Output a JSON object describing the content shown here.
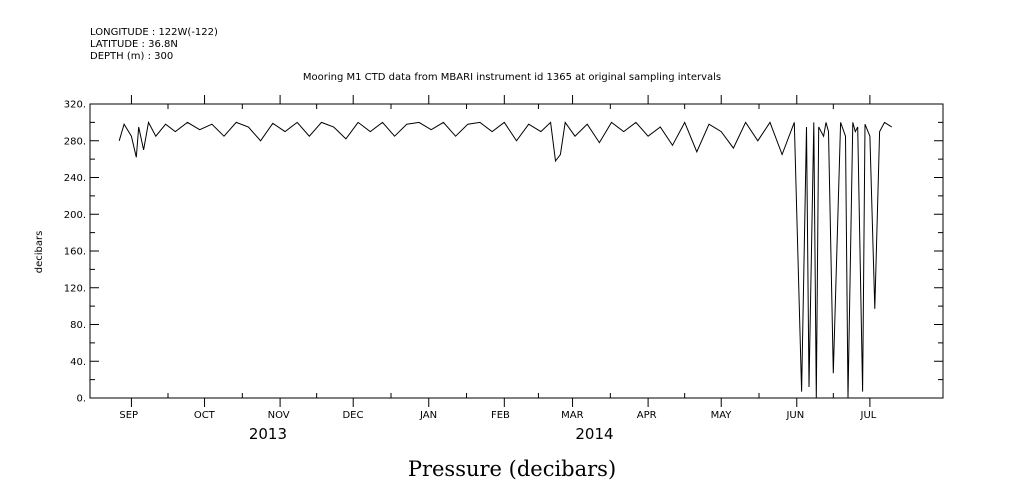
{
  "header": {
    "longitude": "LONGITUDE : 122W(-122)",
    "latitude": "LATITUDE : 36.8N",
    "depth": "DEPTH (m) : 300"
  },
  "chart_data": {
    "type": "line",
    "title": "Mooring M1 CTD data from MBARI instrument id 1365 at original sampling intervals",
    "xlabel": "Pressure (decibars)",
    "ylabel": "decibars",
    "ylim": [
      0,
      320
    ],
    "yticks": [
      "0.",
      "40.",
      "80.",
      "120.",
      "160.",
      "200.",
      "240.",
      "280.",
      "320."
    ],
    "xlim": [
      "2013-08-15",
      "2014-07-31"
    ],
    "month_labels": [
      {
        "label": "SEP",
        "date": "2013-09-01"
      },
      {
        "label": "OCT",
        "date": "2013-10-01"
      },
      {
        "label": "NOV",
        "date": "2013-11-01"
      },
      {
        "label": "DEC",
        "date": "2013-12-01"
      },
      {
        "label": "JAN",
        "date": "2014-01-01"
      },
      {
        "label": "FEB",
        "date": "2014-02-01"
      },
      {
        "label": "MAR",
        "date": "2014-03-01"
      },
      {
        "label": "APR",
        "date": "2014-04-01"
      },
      {
        "label": "MAY",
        "date": "2014-05-01"
      },
      {
        "label": "JUN",
        "date": "2014-06-01"
      },
      {
        "label": "JUL",
        "date": "2014-07-01"
      }
    ],
    "year_labels": [
      {
        "label": "2013",
        "date": "2013-10-27"
      },
      {
        "label": "2014",
        "date": "2014-03-10"
      }
    ],
    "grid": false,
    "series": [
      {
        "x": [
          "2013-08-27",
          "2013-08-29",
          "2013-09-01",
          "2013-09-03",
          "2013-09-04",
          "2013-09-06",
          "2013-09-08",
          "2013-09-11",
          "2013-09-15",
          "2013-09-19",
          "2013-09-24",
          "2013-09-29",
          "2013-10-04",
          "2013-10-09",
          "2013-10-14",
          "2013-10-19",
          "2013-10-24",
          "2013-10-29",
          "2013-11-03",
          "2013-11-08",
          "2013-11-13",
          "2013-11-18",
          "2013-11-23",
          "2013-11-28",
          "2013-12-03",
          "2013-12-08",
          "2013-12-13",
          "2013-12-18",
          "2013-12-23",
          "2013-12-28",
          "2014-01-02",
          "2014-01-07",
          "2014-01-12",
          "2014-01-17",
          "2014-01-22",
          "2014-01-27",
          "2014-02-01",
          "2014-02-06",
          "2014-02-11",
          "2014-02-16",
          "2014-02-20",
          "2014-02-22",
          "2014-02-24",
          "2014-02-26",
          "2014-03-02",
          "2014-03-07",
          "2014-03-12",
          "2014-03-17",
          "2014-03-22",
          "2014-03-27",
          "2014-04-01",
          "2014-04-06",
          "2014-04-11",
          "2014-04-16",
          "2014-04-21",
          "2014-04-26",
          "2014-05-01",
          "2014-05-06",
          "2014-05-11",
          "2014-05-16",
          "2014-05-21",
          "2014-05-26",
          "2014-05-31",
          "2014-06-03",
          "2014-06-05",
          "2014-06-06",
          "2014-06-08",
          "2014-06-09",
          "2014-06-10",
          "2014-06-12",
          "2014-06-13",
          "2014-06-14",
          "2014-06-16",
          "2014-06-19",
          "2014-06-21",
          "2014-06-22",
          "2014-06-24",
          "2014-06-25",
          "2014-06-26",
          "2014-06-28",
          "2014-06-29",
          "2014-07-01",
          "2014-07-03",
          "2014-07-05",
          "2014-07-07",
          "2014-07-10"
        ],
        "y": [
          280,
          298,
          285,
          262,
          295,
          270,
          300,
          285,
          298,
          290,
          300,
          292,
          298,
          285,
          300,
          295,
          280,
          299,
          290,
          300,
          285,
          300,
          295,
          282,
          300,
          290,
          300,
          285,
          298,
          300,
          292,
          300,
          285,
          298,
          300,
          290,
          300,
          280,
          298,
          290,
          300,
          258,
          265,
          300,
          285,
          298,
          278,
          300,
          290,
          300,
          285,
          295,
          275,
          300,
          268,
          298,
          290,
          272,
          300,
          280,
          300,
          265,
          300,
          7,
          295,
          12,
          300,
          0,
          295,
          285,
          300,
          290,
          27,
          300,
          285,
          0,
          300,
          290,
          295,
          7,
          298,
          285,
          97,
          290,
          300,
          295
        ]
      }
    ]
  }
}
